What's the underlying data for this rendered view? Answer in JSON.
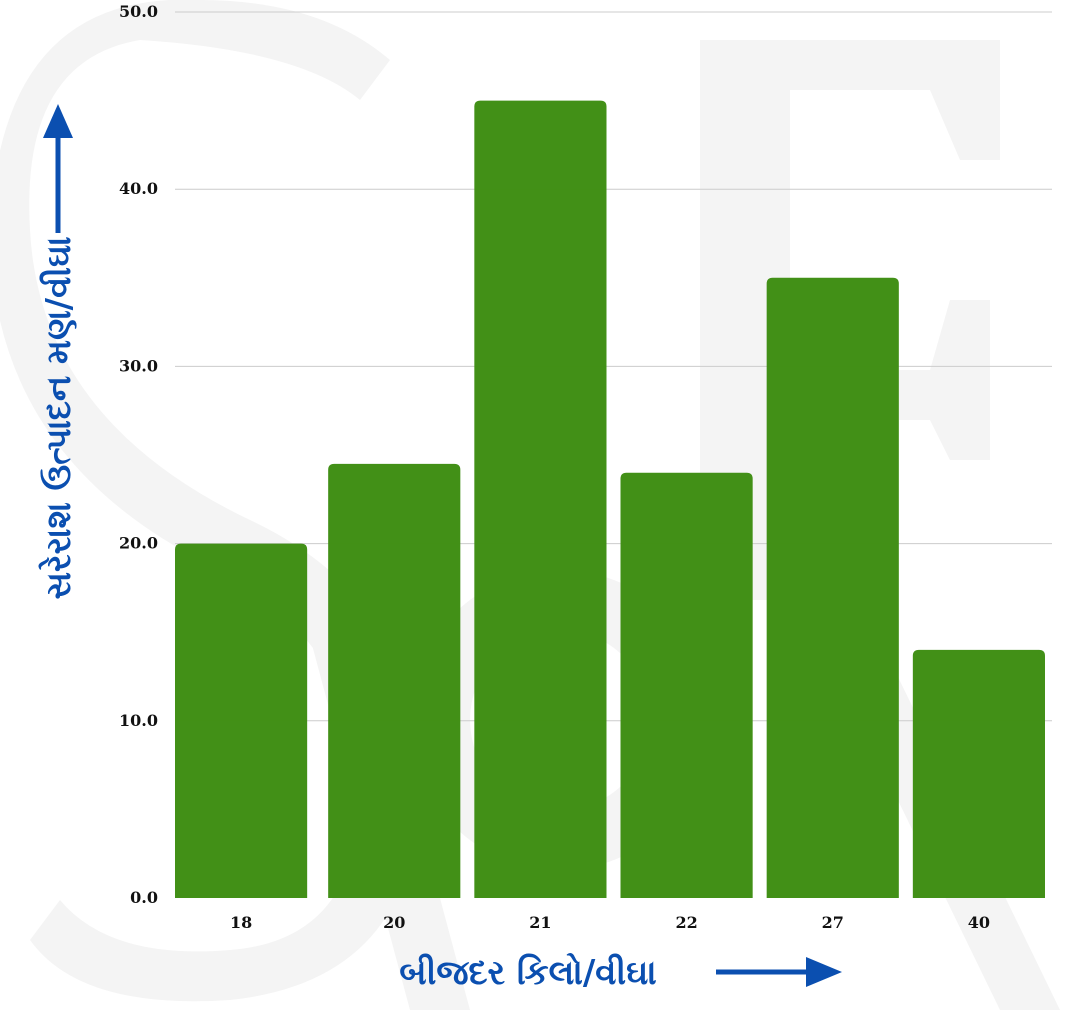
{
  "chart_data": {
    "type": "bar",
    "categories": [
      "18",
      "20",
      "21",
      "22",
      "27",
      "40"
    ],
    "values": [
      20.0,
      24.5,
      45.0,
      24.0,
      35.0,
      14.0
    ],
    "title": "",
    "xlabel": "બીજદર કિલો/વીઘા",
    "ylabel": "સરેરાશ ઉત્પાદન મણ/વીઘા",
    "ylim": [
      0,
      50
    ],
    "yticks": [
      "0.0",
      "10.0",
      "20.0",
      "30.0",
      "40.0",
      "50.0"
    ],
    "grid": true,
    "legend": "none",
    "colors": {
      "bar": "#3e8e12",
      "axis_title": "#0b4fb0",
      "grid": "#cccccc",
      "watermark": "#f3f3f3"
    }
  }
}
